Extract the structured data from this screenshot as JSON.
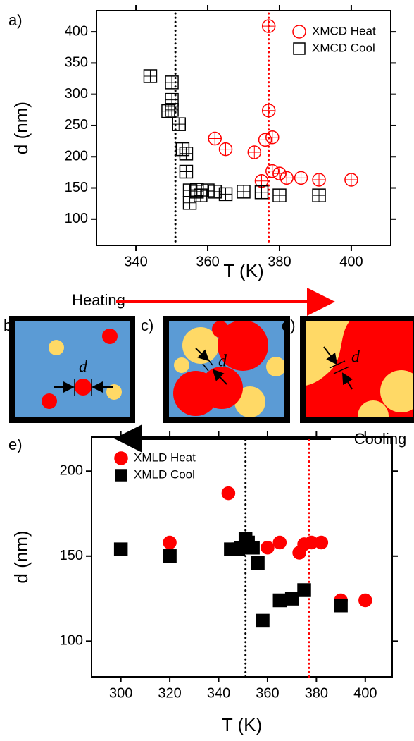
{
  "chart_data": [
    {
      "type": "scatter",
      "label": "a)",
      "xlabel": "T (K)",
      "ylabel": "d (nm)",
      "xlim": [
        329,
        411
      ],
      "ylim": [
        58,
        434
      ],
      "xticks": [
        340,
        360,
        380,
        400
      ],
      "yticks": [
        100,
        150,
        200,
        250,
        300,
        350,
        400
      ],
      "vlines": [
        {
          "x": 351,
          "color": "#000000"
        },
        {
          "x": 377,
          "color": "#ff0000"
        }
      ],
      "legend": "upper right",
      "series": [
        {
          "name": "XMCD Heat",
          "color": "#ff0000",
          "marker": "circle",
          "filled": false,
          "x": [
            377,
            377,
            378,
            376,
            362,
            365,
            373,
            375,
            378,
            380,
            382,
            386,
            391,
            400
          ],
          "values": [
            409,
            274,
            231,
            227,
            229,
            212,
            207,
            161,
            177,
            173,
            166,
            166,
            163,
            163
          ]
        },
        {
          "name": "XMCD Cool",
          "color": "#000000",
          "marker": "square",
          "filled": false,
          "x": [
            344,
            350,
            350,
            349,
            350,
            352,
            353,
            354,
            354,
            355,
            357,
            355,
            357,
            358,
            360,
            362,
            365,
            370,
            375,
            380,
            391
          ],
          "values": [
            329,
            319,
            291,
            273,
            275,
            252,
            212,
            205,
            176,
            146,
            147,
            126,
            144,
            138,
            146,
            144,
            140,
            144,
            143,
            138,
            138
          ]
        }
      ]
    },
    {
      "type": "scatter",
      "label": "e)",
      "xlabel": "T (K)",
      "ylabel": "d (nm)",
      "xlim": [
        288,
        411
      ],
      "ylim": [
        79,
        220
      ],
      "xticks": [
        300,
        320,
        340,
        360,
        380,
        400
      ],
      "yticks": [
        100,
        150,
        200
      ],
      "vlines": [
        {
          "x": 351,
          "color": "#000000"
        },
        {
          "x": 377,
          "color": "#ff0000"
        }
      ],
      "legend": "upper left",
      "series": [
        {
          "name": "XMLD Heat",
          "color": "#ff0000",
          "marker": "circle",
          "filled": true,
          "x": [
            320,
            344,
            360,
            365,
            373,
            375,
            378,
            382,
            390,
            400
          ],
          "values": [
            158,
            187,
            155,
            158,
            152,
            157,
            158,
            158,
            124,
            124
          ]
        },
        {
          "name": "XMLD Cool",
          "color": "#000000",
          "marker": "square",
          "filled": true,
          "x": [
            300,
            320,
            345,
            348,
            349,
            351,
            352,
            354,
            356,
            358,
            365,
            370,
            375,
            390
          ],
          "values": [
            154,
            150,
            154,
            154,
            155,
            160,
            158,
            155,
            146,
            112,
            124,
            125,
            130,
            121
          ]
        }
      ]
    }
  ],
  "diagram": {
    "heating": "Heating",
    "cooling": "Cooling",
    "panels": [
      {
        "label": "b)",
        "symbol": "d"
      },
      {
        "label": "c)",
        "symbol": "d"
      },
      {
        "label": "d)",
        "symbol": "d"
      }
    ]
  }
}
